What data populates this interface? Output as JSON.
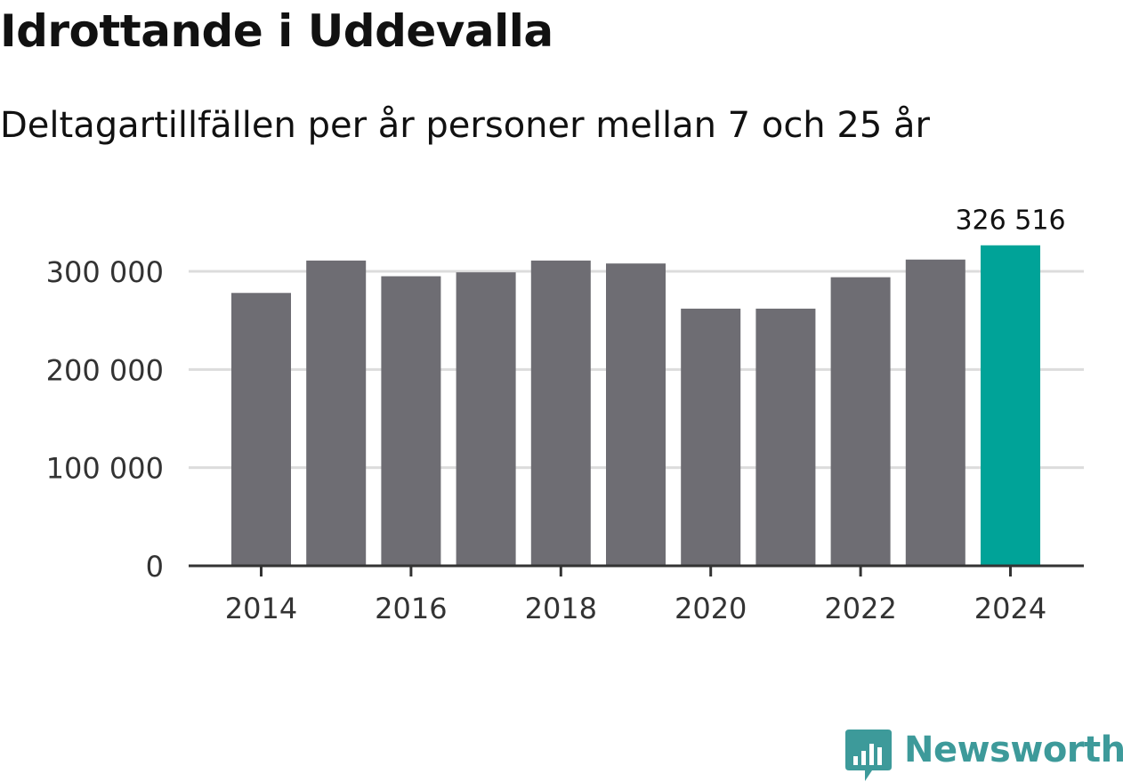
{
  "header": {
    "title": "Idrottande i Uddevalla",
    "subtitle": "Deltagartillfällen per år personer mellan 7 och 25 år"
  },
  "chart_data": {
    "type": "bar",
    "title": "Idrottande i Uddevalla",
    "subtitle": "Deltagartillfällen per år personer mellan 7 och 25 år",
    "xlabel": "",
    "ylabel": "",
    "categories": [
      "2014",
      "2015",
      "2016",
      "2017",
      "2018",
      "2019",
      "2020",
      "2021",
      "2022",
      "2023",
      "2024"
    ],
    "values": [
      278000,
      311000,
      295000,
      299000,
      311000,
      308000,
      262000,
      262000,
      294000,
      312000,
      326516
    ],
    "ylim": [
      0,
      330000
    ],
    "yticks": [
      0,
      100000,
      200000,
      300000
    ],
    "ytick_labels": [
      "0",
      "100 000",
      "200 000",
      "300 000"
    ],
    "xticks": [
      "2014",
      "2016",
      "2018",
      "2020",
      "2022",
      "2024"
    ],
    "highlight_index": 10,
    "data_labels": [
      {
        "index": 10,
        "text": "326 516"
      }
    ],
    "grid": true,
    "colors": {
      "bar": "#6e6d73",
      "highlight": "#00a398",
      "grid": "#dcdcdc",
      "axis": "#333333"
    }
  },
  "footer": {
    "brand": "Newsworthy",
    "brand_color": "#3d9a9a",
    "brand_icon": "bar-chart-speech-bubble-icon"
  }
}
